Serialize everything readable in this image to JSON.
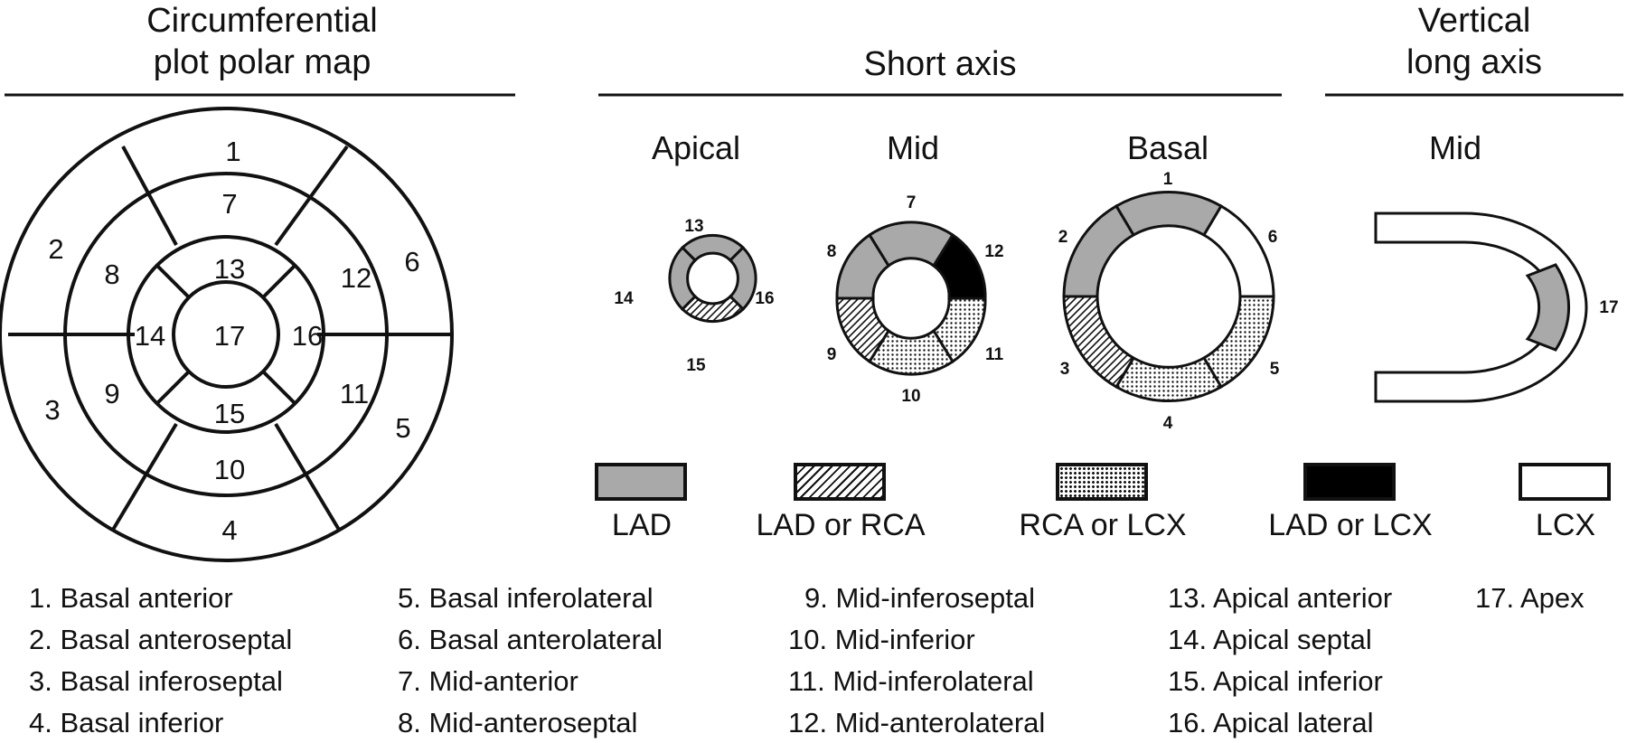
{
  "headers": {
    "polar_map": [
      "Circumferential",
      "plot polar map"
    ],
    "short_axis": "Short axis",
    "vertical_long_axis": [
      "Vertical",
      "long axis"
    ]
  },
  "views": {
    "apical": "Apical",
    "mid_short": "Mid",
    "basal": "Basal",
    "mid_long": "Mid"
  },
  "polar_map_segments": [
    "1",
    "2",
    "3",
    "4",
    "5",
    "6",
    "7",
    "8",
    "9",
    "10",
    "11",
    "12",
    "13",
    "14",
    "15",
    "16",
    "17"
  ],
  "apical_labels": [
    "13",
    "14",
    "15",
    "16"
  ],
  "mid_labels": [
    "7",
    "8",
    "9",
    "10",
    "11",
    "12"
  ],
  "basal_labels": [
    "1",
    "2",
    "3",
    "4",
    "5",
    "6"
  ],
  "long_axis_label": "17",
  "colors": {
    "lad": "#a9a9a9",
    "lad_or_lcx": "#000000",
    "lcx": "#ffffff",
    "line": "#111111"
  },
  "legend": [
    {
      "label": "LAD",
      "pattern": "gray"
    },
    {
      "label": "LAD or RCA",
      "pattern": "hatch"
    },
    {
      "label": "RCA or LCX",
      "pattern": "dots"
    },
    {
      "label": "LAD or LCX",
      "pattern": "black"
    },
    {
      "label": "LCX",
      "pattern": "white"
    }
  ],
  "segment_names": [
    "1. Basal anterior",
    "2. Basal anteroseptal",
    "3. Basal inferoseptal",
    "4. Basal inferior",
    "5. Basal inferolateral",
    "6. Basal anterolateral",
    "7. Mid-anterior",
    "8. Mid-anteroseptal",
    "9. Mid-inferoseptal",
    "10. Mid-inferior",
    "11. Mid-inferolateral",
    "12. Mid-anterolateral",
    "13. Apical anterior",
    "14. Apical septal",
    "15. Apical inferior",
    "16. Apical lateral",
    "17. Apex"
  ]
}
